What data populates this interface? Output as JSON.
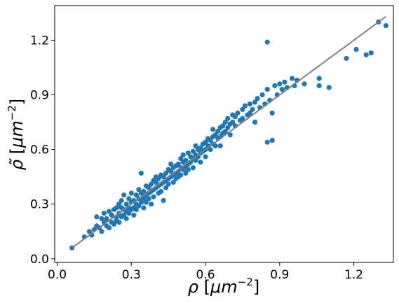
{
  "chart_data": {
    "type": "scatter",
    "title": "",
    "xlabel": {
      "symbol": "ρ",
      "unit_open": " [",
      "unit_base": "μm",
      "unit_exp": "−2",
      "unit_close": "]"
    },
    "ylabel": {
      "symbol": "ρ̃",
      "unit_open": " [",
      "unit_base": "μm",
      "unit_exp": "−2",
      "unit_close": "]"
    },
    "xlim": [
      -0.01,
      1.36
    ],
    "ylim": [
      -0.02,
      1.39
    ],
    "xticks": [
      0.0,
      0.3,
      0.6,
      0.9,
      1.2
    ],
    "yticks": [
      0.0,
      0.3,
      0.6,
      0.9,
      1.2
    ],
    "xtick_labels": [
      "0.0",
      "0.3",
      "0.6",
      "0.9",
      "1.2"
    ],
    "ytick_labels": [
      "0.0",
      "0.3",
      "0.6",
      "0.9",
      "1.2"
    ],
    "grid": false,
    "series": [
      {
        "marker_color": "#1f77b4",
        "points": [
          [
            0.06,
            0.06
          ],
          [
            0.11,
            0.12
          ],
          [
            0.13,
            0.15
          ],
          [
            0.14,
            0.13
          ],
          [
            0.15,
            0.16
          ],
          [
            0.16,
            0.23
          ],
          [
            0.16,
            0.18
          ],
          [
            0.17,
            0.17
          ],
          [
            0.18,
            0.22
          ],
          [
            0.18,
            0.15
          ],
          [
            0.19,
            0.2
          ],
          [
            0.19,
            0.25
          ],
          [
            0.2,
            0.18
          ],
          [
            0.2,
            0.22
          ],
          [
            0.21,
            0.26
          ],
          [
            0.21,
            0.17
          ],
          [
            0.22,
            0.24
          ],
          [
            0.22,
            0.2
          ],
          [
            0.23,
            0.27
          ],
          [
            0.23,
            0.19
          ],
          [
            0.24,
            0.28
          ],
          [
            0.24,
            0.23
          ],
          [
            0.24,
            0.21
          ],
          [
            0.25,
            0.3
          ],
          [
            0.25,
            0.25
          ],
          [
            0.25,
            0.2
          ],
          [
            0.26,
            0.28
          ],
          [
            0.26,
            0.23
          ],
          [
            0.26,
            0.32
          ],
          [
            0.27,
            0.27
          ],
          [
            0.27,
            0.24
          ],
          [
            0.27,
            0.35
          ],
          [
            0.28,
            0.3
          ],
          [
            0.28,
            0.26
          ],
          [
            0.28,
            0.22
          ],
          [
            0.29,
            0.33
          ],
          [
            0.29,
            0.28
          ],
          [
            0.29,
            0.25
          ],
          [
            0.3,
            0.31
          ],
          [
            0.3,
            0.27
          ],
          [
            0.3,
            0.36
          ],
          [
            0.31,
            0.32
          ],
          [
            0.31,
            0.28
          ],
          [
            0.31,
            0.24
          ],
          [
            0.32,
            0.35
          ],
          [
            0.32,
            0.3
          ],
          [
            0.32,
            0.27
          ],
          [
            0.33,
            0.38
          ],
          [
            0.33,
            0.33
          ],
          [
            0.33,
            0.29
          ],
          [
            0.34,
            0.36
          ],
          [
            0.34,
            0.31
          ],
          [
            0.34,
            0.47
          ],
          [
            0.35,
            0.37
          ],
          [
            0.35,
            0.33
          ],
          [
            0.35,
            0.28
          ],
          [
            0.36,
            0.4
          ],
          [
            0.36,
            0.35
          ],
          [
            0.36,
            0.31
          ],
          [
            0.37,
            0.39
          ],
          [
            0.37,
            0.36
          ],
          [
            0.37,
            0.33
          ],
          [
            0.38,
            0.41
          ],
          [
            0.38,
            0.37
          ],
          [
            0.38,
            0.3
          ],
          [
            0.39,
            0.43
          ],
          [
            0.39,
            0.38
          ],
          [
            0.39,
            0.34
          ],
          [
            0.4,
            0.42
          ],
          [
            0.4,
            0.39
          ],
          [
            0.4,
            0.45
          ],
          [
            0.41,
            0.44
          ],
          [
            0.41,
            0.4
          ],
          [
            0.41,
            0.36
          ],
          [
            0.42,
            0.46
          ],
          [
            0.42,
            0.41
          ],
          [
            0.42,
            0.37
          ],
          [
            0.43,
            0.45
          ],
          [
            0.43,
            0.42
          ],
          [
            0.43,
            0.32
          ],
          [
            0.44,
            0.47
          ],
          [
            0.44,
            0.43
          ],
          [
            0.44,
            0.39
          ],
          [
            0.45,
            0.49
          ],
          [
            0.45,
            0.44
          ],
          [
            0.45,
            0.41
          ],
          [
            0.46,
            0.48
          ],
          [
            0.46,
            0.45
          ],
          [
            0.46,
            0.52
          ],
          [
            0.47,
            0.5
          ],
          [
            0.47,
            0.46
          ],
          [
            0.47,
            0.42
          ],
          [
            0.48,
            0.51
          ],
          [
            0.48,
            0.47
          ],
          [
            0.48,
            0.44
          ],
          [
            0.49,
            0.52
          ],
          [
            0.49,
            0.48
          ],
          [
            0.49,
            0.45
          ],
          [
            0.5,
            0.55
          ],
          [
            0.5,
            0.5
          ],
          [
            0.5,
            0.46
          ],
          [
            0.51,
            0.53
          ],
          [
            0.51,
            0.49
          ],
          [
            0.51,
            0.57
          ],
          [
            0.52,
            0.54
          ],
          [
            0.52,
            0.51
          ],
          [
            0.52,
            0.47
          ],
          [
            0.53,
            0.58
          ],
          [
            0.53,
            0.52
          ],
          [
            0.53,
            0.49
          ],
          [
            0.54,
            0.56
          ],
          [
            0.54,
            0.53
          ],
          [
            0.55,
            0.59
          ],
          [
            0.55,
            0.55
          ],
          [
            0.55,
            0.5
          ],
          [
            0.56,
            0.57
          ],
          [
            0.56,
            0.54
          ],
          [
            0.56,
            0.62
          ],
          [
            0.57,
            0.6
          ],
          [
            0.57,
            0.56
          ],
          [
            0.58,
            0.61
          ],
          [
            0.58,
            0.58
          ],
          [
            0.58,
            0.53
          ],
          [
            0.59,
            0.63
          ],
          [
            0.59,
            0.59
          ],
          [
            0.6,
            0.64
          ],
          [
            0.6,
            0.6
          ],
          [
            0.6,
            0.56
          ],
          [
            0.61,
            0.66
          ],
          [
            0.61,
            0.62
          ],
          [
            0.62,
            0.65
          ],
          [
            0.62,
            0.6
          ],
          [
            0.63,
            0.67
          ],
          [
            0.63,
            0.63
          ],
          [
            0.63,
            0.71
          ],
          [
            0.64,
            0.68
          ],
          [
            0.64,
            0.62
          ],
          [
            0.65,
            0.7
          ],
          [
            0.65,
            0.66
          ],
          [
            0.66,
            0.72
          ],
          [
            0.66,
            0.67
          ],
          [
            0.66,
            0.62
          ],
          [
            0.67,
            0.73
          ],
          [
            0.67,
            0.69
          ],
          [
            0.68,
            0.75
          ],
          [
            0.68,
            0.7
          ],
          [
            0.69,
            0.77
          ],
          [
            0.69,
            0.72
          ],
          [
            0.7,
            0.74
          ],
          [
            0.7,
            0.68
          ],
          [
            0.71,
            0.79
          ],
          [
            0.71,
            0.75
          ],
          [
            0.72,
            0.78
          ],
          [
            0.72,
            0.73
          ],
          [
            0.73,
            0.8
          ],
          [
            0.74,
            0.76
          ],
          [
            0.75,
            0.82
          ],
          [
            0.75,
            0.77
          ],
          [
            0.76,
            0.84
          ],
          [
            0.77,
            0.79
          ],
          [
            0.78,
            0.85
          ],
          [
            0.78,
            0.8
          ],
          [
            0.79,
            0.82
          ],
          [
            0.8,
            0.86
          ],
          [
            0.8,
            0.75
          ],
          [
            0.81,
            0.88
          ],
          [
            0.82,
            0.83
          ],
          [
            0.83,
            0.9
          ],
          [
            0.84,
            0.85
          ],
          [
            0.85,
            0.64
          ],
          [
            0.85,
            1.19
          ],
          [
            0.85,
            0.93
          ],
          [
            0.86,
            0.87
          ],
          [
            0.87,
            0.65
          ],
          [
            0.87,
            0.8
          ],
          [
            0.88,
            0.95
          ],
          [
            0.89,
            0.9
          ],
          [
            0.9,
            0.96
          ],
          [
            0.91,
            0.93
          ],
          [
            0.92,
            0.97
          ],
          [
            0.93,
            0.94
          ],
          [
            0.95,
            0.99
          ],
          [
            0.96,
            0.95
          ],
          [
            0.97,
            0.98
          ],
          [
            1.0,
            0.96
          ],
          [
            1.06,
            0.99
          ],
          [
            1.06,
            0.95
          ],
          [
            1.1,
            0.94
          ],
          [
            1.17,
            1.1
          ],
          [
            1.21,
            1.15
          ],
          [
            1.25,
            1.12
          ],
          [
            1.27,
            1.13
          ],
          [
            1.3,
            1.3
          ],
          [
            1.33,
            1.28
          ]
        ]
      }
    ],
    "reference_line": {
      "color": "#808080",
      "from": [
        0.06,
        0.06
      ],
      "to": [
        1.33,
        1.33
      ]
    },
    "marker_color": "#1f77b4"
  }
}
